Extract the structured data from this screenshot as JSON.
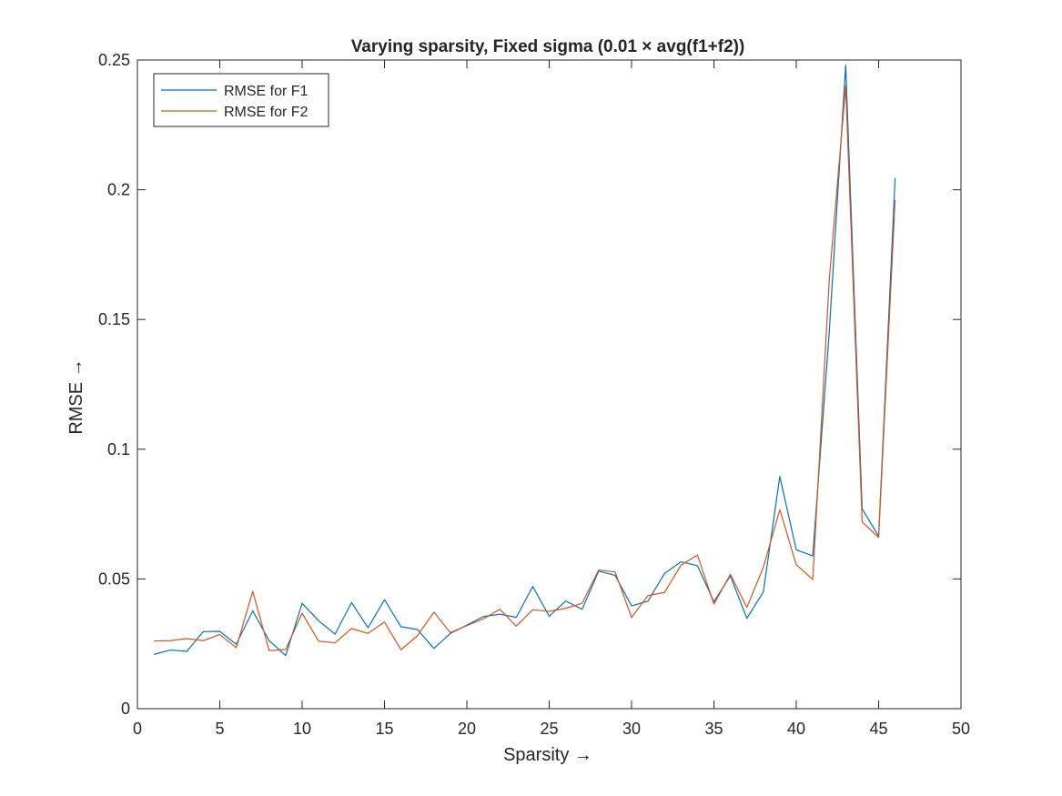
{
  "chart_data": {
    "type": "line",
    "title": "Varying sparsity, Fixed sigma (0.01 × avg(f1+f2))",
    "xlabel": "Sparsity →",
    "ylabel": "RMSE →",
    "xlim": [
      0,
      50
    ],
    "ylim": [
      0,
      0.25
    ],
    "xticks": [
      0,
      5,
      10,
      15,
      20,
      25,
      30,
      35,
      40,
      45,
      50
    ],
    "yticks": [
      0,
      0.05,
      0.1,
      0.15,
      0.2,
      0.25
    ],
    "xtick_labels": [
      "0",
      "5",
      "10",
      "15",
      "20",
      "25",
      "30",
      "35",
      "40",
      "45",
      "50"
    ],
    "ytick_labels": [
      "0",
      "0.05",
      "0.1",
      "0.15",
      "0.2",
      "0.25"
    ],
    "grid": false,
    "legend_position": "top-left",
    "x": [
      1,
      2,
      3,
      4,
      5,
      6,
      7,
      8,
      9,
      10,
      11,
      12,
      13,
      14,
      15,
      16,
      17,
      18,
      19,
      20,
      21,
      22,
      23,
      24,
      25,
      26,
      27,
      28,
      29,
      30,
      31,
      32,
      33,
      34,
      35,
      36,
      37,
      38,
      39,
      40,
      41,
      42,
      43,
      44,
      45,
      46
    ],
    "series": [
      {
        "name": "RMSE for F1",
        "color": "#0072BD",
        "values": [
          0.0209,
          0.0226,
          0.0221,
          0.0297,
          0.0298,
          0.0248,
          0.0377,
          0.0262,
          0.0205,
          0.0406,
          0.0339,
          0.0287,
          0.0409,
          0.0312,
          0.042,
          0.0316,
          0.0305,
          0.0232,
          0.029,
          0.0322,
          0.0355,
          0.0364,
          0.0352,
          0.0471,
          0.0356,
          0.0415,
          0.0383,
          0.053,
          0.0514,
          0.0396,
          0.0415,
          0.0521,
          0.0566,
          0.0551,
          0.0412,
          0.0512,
          0.0348,
          0.045,
          0.0895,
          0.0612,
          0.0589,
          0.145,
          0.248,
          0.077,
          0.0665,
          0.2045
        ]
      },
      {
        "name": "RMSE for F2",
        "color": "#D95319",
        "values": [
          0.0261,
          0.0262,
          0.027,
          0.0262,
          0.0286,
          0.0235,
          0.0452,
          0.0224,
          0.0228,
          0.0368,
          0.026,
          0.0254,
          0.0309,
          0.029,
          0.0334,
          0.0227,
          0.0281,
          0.0372,
          0.0293,
          0.032,
          0.0346,
          0.0383,
          0.0318,
          0.0381,
          0.0375,
          0.0387,
          0.0406,
          0.0534,
          0.0527,
          0.0352,
          0.0436,
          0.0448,
          0.0553,
          0.0592,
          0.0403,
          0.0518,
          0.039,
          0.0545,
          0.0767,
          0.0555,
          0.0498,
          0.165,
          0.24,
          0.072,
          0.066,
          0.196
        ]
      }
    ]
  }
}
